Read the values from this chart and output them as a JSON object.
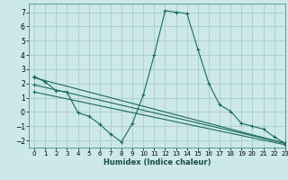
{
  "title": "",
  "xlabel": "Humidex (Indice chaleur)",
  "bg_color": "#cce8e8",
  "grid_color": "#aacccc",
  "line_color": "#1a6b5a",
  "xlim": [
    -0.5,
    23
  ],
  "ylim": [
    -2.5,
    7.6
  ],
  "xticks": [
    0,
    1,
    2,
    3,
    4,
    5,
    6,
    7,
    8,
    9,
    10,
    11,
    12,
    13,
    14,
    15,
    16,
    17,
    18,
    19,
    20,
    21,
    22,
    23
  ],
  "yticks": [
    -2,
    -1,
    0,
    1,
    2,
    3,
    4,
    5,
    6,
    7
  ],
  "main_line_x": [
    0,
    1,
    2,
    3,
    4,
    5,
    6,
    7,
    8,
    9,
    10,
    11,
    12,
    13,
    14,
    15,
    16,
    17,
    18,
    19,
    20,
    21,
    22,
    23
  ],
  "main_line_y": [
    2.5,
    2.1,
    1.5,
    1.4,
    -0.05,
    -0.3,
    -0.85,
    -1.55,
    -2.1,
    -0.8,
    1.2,
    4.0,
    7.1,
    7.0,
    6.9,
    4.4,
    2.0,
    0.5,
    0.05,
    -0.8,
    -1.0,
    -1.2,
    -1.75,
    -2.2
  ],
  "trend1_x": [
    0,
    23
  ],
  "trend1_y": [
    2.4,
    -2.2
  ],
  "trend2_x": [
    0,
    23
  ],
  "trend2_y": [
    1.9,
    -2.2
  ],
  "trend3_x": [
    0,
    23
  ],
  "trend3_y": [
    1.4,
    -2.3
  ],
  "spine_color": "#5a9a9a",
  "xlabel_fontsize": 6.0,
  "tick_fontsize_x": 5.0,
  "tick_fontsize_y": 5.5
}
